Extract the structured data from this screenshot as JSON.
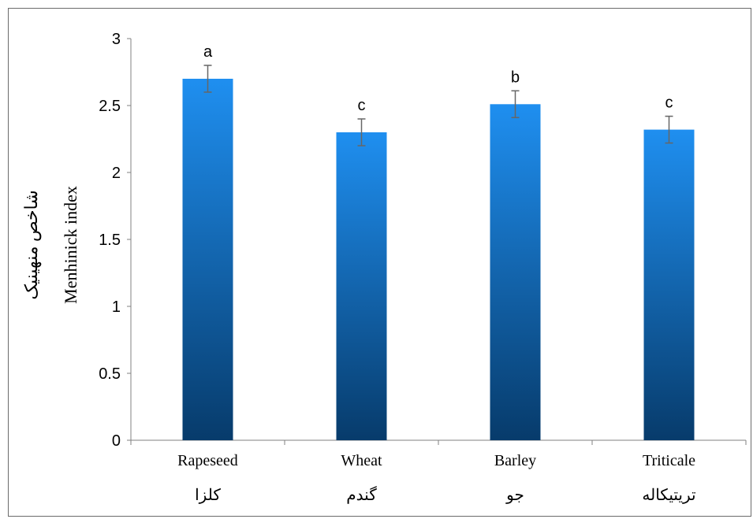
{
  "chart_data": {
    "type": "bar",
    "categories": [
      "Rapeseed",
      "Wheat",
      "Barley",
      "Triticale"
    ],
    "categories_fa": [
      "کلزا",
      "گندم",
      "جو",
      "تریتیکاله"
    ],
    "values": [
      2.7,
      2.3,
      2.51,
      2.32
    ],
    "error": [
      0.1,
      0.1,
      0.1,
      0.1
    ],
    "significance": [
      "a",
      "c",
      "b",
      "c"
    ],
    "ylabel": "Menhinick index",
    "ylabel_fa": "شاخص منهینیک",
    "xlabel": "",
    "title": "",
    "ylim": [
      0,
      3
    ],
    "yticks": [
      "0",
      "0.5",
      "1",
      "1.5",
      "2",
      "2.5",
      "3"
    ],
    "grid": false,
    "legend": "none",
    "colors": {
      "bar_top": "#1f8ff0",
      "bar_bottom": "#073b6b",
      "error_bar": "#666666",
      "axis": "#808080"
    }
  }
}
